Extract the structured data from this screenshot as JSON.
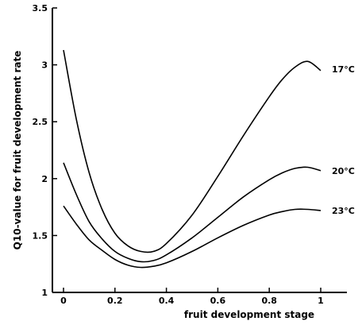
{
  "chart_data": {
    "type": "line",
    "title": "",
    "xlabel": "fruit development stage",
    "ylabel": "Q10-value for fruit development rate",
    "xlim": [
      -0.05,
      1.1
    ],
    "ylim": [
      1,
      3.5
    ],
    "x_ticks": [
      0,
      0.2,
      0.4,
      0.6,
      0.8,
      1
    ],
    "x_tick_labels": [
      "0",
      "0.2",
      "0.4",
      "0.6",
      "0.8",
      "1"
    ],
    "y_ticks": [
      1,
      1.5,
      2,
      2.5,
      3,
      3.5
    ],
    "y_tick_labels": [
      "1",
      "1.5",
      "2",
      "2.5",
      "3",
      "3.5"
    ],
    "grid": false,
    "legend": "none",
    "series": [
      {
        "name": "17°C",
        "x": [
          0,
          0.05,
          0.1,
          0.15,
          0.2,
          0.25,
          0.3,
          0.35,
          0.4,
          0.5,
          0.6,
          0.7,
          0.8,
          0.85,
          0.9,
          0.95,
          1
        ],
        "y": [
          3.13,
          2.52,
          2.05,
          1.73,
          1.52,
          1.41,
          1.36,
          1.36,
          1.43,
          1.68,
          2.02,
          2.38,
          2.72,
          2.87,
          2.98,
          3.03,
          2.95
        ]
      },
      {
        "name": "20°C",
        "x": [
          0,
          0.05,
          0.1,
          0.15,
          0.2,
          0.25,
          0.3,
          0.35,
          0.4,
          0.5,
          0.6,
          0.7,
          0.8,
          0.85,
          0.9,
          0.95,
          1
        ],
        "y": [
          2.14,
          1.86,
          1.62,
          1.47,
          1.36,
          1.3,
          1.27,
          1.28,
          1.33,
          1.48,
          1.66,
          1.84,
          1.99,
          2.05,
          2.09,
          2.1,
          2.07
        ]
      },
      {
        "name": "23°C",
        "x": [
          0,
          0.05,
          0.1,
          0.15,
          0.2,
          0.25,
          0.3,
          0.35,
          0.4,
          0.5,
          0.6,
          0.7,
          0.8,
          0.85,
          0.9,
          0.95,
          1
        ],
        "y": [
          1.76,
          1.6,
          1.46,
          1.37,
          1.29,
          1.24,
          1.22,
          1.23,
          1.26,
          1.36,
          1.48,
          1.59,
          1.68,
          1.71,
          1.73,
          1.73,
          1.72
        ]
      }
    ]
  }
}
